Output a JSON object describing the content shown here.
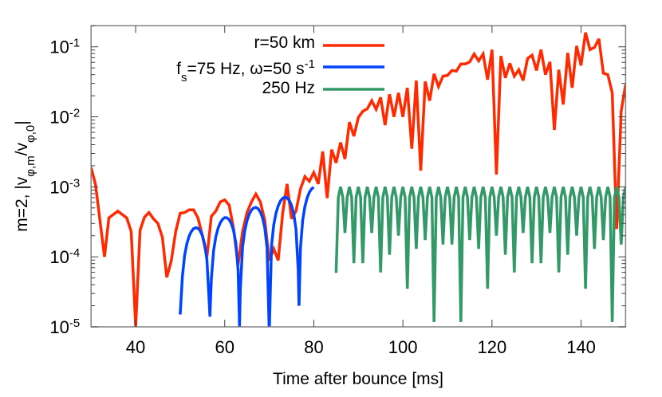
{
  "chart_data": {
    "type": "line",
    "title": "",
    "xlabel": "Time after bounce [ms]",
    "ylabel_parts": [
      [
        "m=2, |v",
        ""
      ],
      [
        "φ,m",
        "sub"
      ],
      [
        "/v",
        ""
      ],
      [
        "φ,0",
        "sub"
      ],
      [
        "|",
        ""
      ]
    ],
    "ylabel": "m=2, |vφ,m/vφ,0|",
    "xlim": [
      30,
      150
    ],
    "ylim": [
      1e-05,
      0.2
    ],
    "yscale": "log",
    "grid": false,
    "legend_position": "top-right",
    "xticks": [
      40,
      60,
      80,
      100,
      120,
      140
    ],
    "yticks": [
      {
        "base": "10",
        "exp": "-5",
        "value": 1e-05
      },
      {
        "base": "10",
        "exp": "-4",
        "value": 0.0001
      },
      {
        "base": "10",
        "exp": "-3",
        "value": 0.001
      },
      {
        "base": "10",
        "exp": "-2",
        "value": 0.01
      },
      {
        "base": "10",
        "exp": "-1",
        "value": 0.1
      }
    ],
    "series": [
      {
        "name": "r=50 km",
        "legend_parts": [
          [
            "r=50 km",
            ""
          ]
        ],
        "color": "#ff2a00",
        "points": [
          [
            30,
            0.0019
          ],
          [
            31,
            0.00107
          ],
          [
            33,
            0.0001
          ],
          [
            34,
            0.00036
          ],
          [
            36,
            0.00045
          ],
          [
            38,
            0.00036
          ],
          [
            39,
            0.00023
          ],
          [
            40,
            1e-05
          ],
          [
            41,
            0.00024
          ],
          [
            42,
            0.00037
          ],
          [
            43,
            0.00043
          ],
          [
            44,
            0.00035
          ],
          [
            45,
            0.0003
          ],
          [
            46,
            0.00019
          ],
          [
            47,
            5.1e-05
          ],
          [
            48,
            8.7e-05
          ],
          [
            49,
            0.00023
          ],
          [
            50,
            0.00042
          ],
          [
            51,
            0.00043
          ],
          [
            52,
            0.00047
          ],
          [
            53,
            0.00047
          ],
          [
            54,
            0.00036
          ],
          [
            55,
            0.0002
          ],
          [
            56,
            0.0001
          ],
          [
            57,
            0.00038
          ],
          [
            58,
            0.00045
          ],
          [
            59,
            0.00061
          ],
          [
            60,
            0.00065
          ],
          [
            61,
            0.00055
          ],
          [
            62,
            0.00025
          ],
          [
            63,
            7.7e-05
          ],
          [
            64,
            0.00023
          ],
          [
            65,
            0.00043
          ],
          [
            66,
            0.00061
          ],
          [
            67,
            0.00079
          ],
          [
            68,
            0.00061
          ],
          [
            69,
            0.00033
          ],
          [
            70,
            8.9e-05
          ],
          [
            71,
            0.00013
          ],
          [
            72,
            8.9e-05
          ],
          [
            73,
            0.00042
          ],
          [
            74,
            0.0011
          ],
          [
            75,
            0.00035
          ],
          [
            76,
            0.00045
          ],
          [
            77,
            0.00093
          ],
          [
            78,
            0.0014
          ],
          [
            79,
            0.0012
          ],
          [
            80,
            0.0016
          ],
          [
            81,
            0.0011
          ],
          [
            82,
            0.0032
          ],
          [
            83,
            0.00069
          ],
          [
            84,
            0.0034
          ],
          [
            85,
            0.0022
          ],
          [
            86,
            0.0043
          ],
          [
            87,
            0.0025
          ],
          [
            88,
            0.0084
          ],
          [
            89,
            0.0053
          ],
          [
            90,
            0.0098
          ],
          [
            91,
            0.012
          ],
          [
            92,
            0.013
          ],
          [
            93,
            0.017
          ],
          [
            94,
            0.0128
          ],
          [
            95,
            0.019
          ],
          [
            96,
            0.0076
          ],
          [
            97,
            0.021
          ],
          [
            98,
            0.01
          ],
          [
            99,
            0.022
          ],
          [
            100,
            0.01
          ],
          [
            101,
            0.026
          ],
          [
            102,
            0.0035
          ],
          [
            103,
            0.033
          ],
          [
            104,
            0.0017
          ],
          [
            105,
            0.032
          ],
          [
            106,
            0.017
          ],
          [
            107,
            0.041
          ],
          [
            108,
            0.027
          ],
          [
            109,
            0.038
          ],
          [
            110,
            0.039
          ],
          [
            111,
            0.046
          ],
          [
            112,
            0.045
          ],
          [
            113,
            0.057
          ],
          [
            114,
            0.057
          ],
          [
            115,
            0.061
          ],
          [
            116,
            0.079
          ],
          [
            117,
            0.063
          ],
          [
            118,
            0.079
          ],
          [
            119,
            0.034
          ],
          [
            120,
            0.091
          ],
          [
            121,
            0.0015
          ],
          [
            122,
            0.074
          ],
          [
            123,
            0.036
          ],
          [
            124,
            0.058
          ],
          [
            125,
            0.038
          ],
          [
            126,
            0.047
          ],
          [
            127,
            0.033
          ],
          [
            128,
            0.068
          ],
          [
            129,
            0.076
          ],
          [
            130,
            0.046
          ],
          [
            131,
            0.091
          ],
          [
            132,
            0.04
          ],
          [
            133,
            0.061
          ],
          [
            134,
            0.0065
          ],
          [
            135,
            0.047
          ],
          [
            136,
            0.015
          ],
          [
            137,
            0.082
          ],
          [
            138,
            0.026
          ],
          [
            139,
            0.103
          ],
          [
            140,
            0.054
          ],
          [
            141,
            0.16
          ],
          [
            142,
            0.091
          ],
          [
            143,
            0.098
          ],
          [
            144,
            0.13
          ],
          [
            145,
            0.042
          ],
          [
            146,
            0.04
          ],
          [
            147,
            0.022
          ],
          [
            148,
            0.00025
          ],
          [
            149,
            0.012
          ],
          [
            150,
            0.029
          ]
        ]
      },
      {
        "name": "fs=75 Hz, ω=50 s-1",
        "legend_parts": [
          [
            "f",
            ""
          ],
          [
            "s",
            "sub"
          ],
          [
            "=75 Hz, ω=50 s",
            ""
          ],
          [
            "-1",
            "sup"
          ]
        ],
        "color": "#0044ff",
        "points": [
          [
            50,
            1.5e-05
          ],
          [
            50.5,
            5.26e-05
          ],
          [
            51,
            0.000105
          ],
          [
            51.5,
            0.000154
          ],
          [
            52,
            0.000197
          ],
          [
            52.5,
            0.00023
          ],
          [
            53,
            0.000253
          ],
          [
            53.5,
            0.000261
          ],
          [
            54,
            0.000256
          ],
          [
            54.5,
            0.000235
          ],
          [
            55,
            0.0002
          ],
          [
            55.5,
            0.000151
          ],
          [
            56,
            9.18e-05
          ],
          [
            56.5,
            2.38e-05
          ],
          [
            56.67,
            1.4e-05
          ],
          [
            57,
            4.87e-05
          ],
          [
            57.5,
            0.000123
          ],
          [
            58,
            0.000193
          ],
          [
            58.5,
            0.000256
          ],
          [
            59,
            0.000307
          ],
          [
            59.5,
            0.000344
          ],
          [
            60,
            0.000363
          ],
          [
            60.5,
            0.000361
          ],
          [
            61,
            0.00034
          ],
          [
            61.5,
            0.000297
          ],
          [
            62,
            0.000236
          ],
          [
            62.5,
            0.000157
          ],
          [
            63,
            6.57e-05
          ],
          [
            63.33,
            1e-05
          ],
          [
            63.5,
            3.37e-05
          ],
          [
            64,
            0.000137
          ],
          [
            64.5,
            0.000237
          ],
          [
            65,
            0.000329
          ],
          [
            65.5,
            0.000407
          ],
          [
            66,
            0.000466
          ],
          [
            66.5,
            0.0005
          ],
          [
            67,
            0.000508
          ],
          [
            67.5,
            0.000488
          ],
          [
            68,
            0.000438
          ],
          [
            68.5,
            0.00036
          ],
          [
            69,
            0.000258
          ],
          [
            69.5,
            0.000136
          ],
          [
            70,
            8e-06
          ],
          [
            70.5,
            0.000143
          ],
          [
            71,
            0.000285
          ],
          [
            71.5,
            0.000418
          ],
          [
            72,
            0.000535
          ],
          [
            72.5,
            0.000626
          ],
          [
            73,
            0.000686
          ],
          [
            73.5,
            0.00071
          ],
          [
            74,
            0.000695
          ],
          [
            74.5,
            0.000639
          ],
          [
            75,
            0.000543
          ],
          [
            75.5,
            0.000411
          ],
          [
            76,
            0.000249
          ],
          [
            76.5,
            6.46e-05
          ],
          [
            76.67,
            2e-05
          ],
          [
            77,
            0.000132
          ],
          [
            77.5,
            0.000333
          ],
          [
            78,
            0.000525
          ],
          [
            78.5,
            0.000695
          ],
          [
            79,
            0.000836
          ],
          [
            79.5,
            0.000935
          ],
          [
            80,
            0.000986
          ]
        ]
      },
      {
        "name": "250 Hz",
        "legend_parts": [
          [
            "250 Hz",
            ""
          ]
        ],
        "color": "#339966",
        "x": [
          85,
          85.5,
          86,
          86.5,
          87,
          87.5,
          88,
          88.5,
          89,
          89.5,
          90,
          90.5,
          91,
          91.5,
          92,
          92.5,
          93,
          93.5,
          94,
          94.5,
          95,
          95.5,
          96,
          96.5,
          97,
          97.5,
          98,
          98.5,
          99,
          99.5,
          100,
          100.5,
          101,
          101.5,
          102,
          102.5,
          103,
          103.5,
          104,
          104.5,
          105,
          105.5,
          106,
          106.5,
          107,
          107.5,
          108,
          108.5,
          109,
          109.5,
          110,
          110.5,
          111,
          111.5,
          112,
          112.5,
          113,
          113.5,
          114,
          114.5,
          115,
          115.5,
          116,
          116.5,
          117,
          117.5,
          118,
          118.5,
          119,
          119.5,
          120,
          120.5,
          121,
          121.5,
          122,
          122.5,
          123,
          123.5,
          124,
          124.5,
          125,
          125.5,
          126,
          126.5,
          127,
          127.5,
          128,
          128.5,
          129,
          129.5,
          130,
          130.5,
          131,
          131.5,
          132,
          132.5,
          133,
          133.5,
          134,
          134.5,
          135,
          135.5,
          136,
          136.5,
          137,
          137.5,
          138,
          138.5,
          139,
          139.5,
          140,
          140.5,
          141,
          141.5,
          142,
          142.5,
          143,
          143.5,
          144,
          144.5,
          145,
          145.5,
          146,
          146.5,
          147,
          147.5,
          148,
          148.5,
          149,
          149.5,
          150
        ],
        "y": [
          5.9e-05,
          0.00071,
          0.001,
          0.00071,
          0.00022,
          0.00071,
          0.001,
          0.00071,
          8.1e-05,
          0.00071,
          0.001,
          0.00071,
          8.1e-05,
          0.00071,
          0.001,
          0.00071,
          0.00022,
          0.00071,
          0.001,
          0.00071,
          6e-05,
          0.00071,
          0.001,
          0.00071,
          0.000107,
          0.00071,
          0.001,
          0.00071,
          0.0002,
          0.00071,
          0.001,
          0.00071,
          3.5e-05,
          0.00071,
          0.001,
          0.00071,
          0.00013,
          0.00071,
          0.001,
          0.00071,
          0.000174,
          0.00071,
          0.001,
          0.00071,
          1.17e-05,
          0.00071,
          0.001,
          0.00071,
          0.00015,
          0.00071,
          0.001,
          0.00071,
          0.00015,
          0.00071,
          0.001,
          0.00071,
          1.17e-05,
          0.00071,
          0.001,
          0.00071,
          0.000174,
          0.00071,
          0.001,
          0.00071,
          0.00013,
          0.00071,
          0.001,
          0.00071,
          3.5e-05,
          0.00071,
          0.001,
          0.00071,
          0.0002,
          0.00071,
          0.001,
          0.00071,
          0.000107,
          0.00071,
          0.001,
          0.00071,
          6e-05,
          0.00071,
          0.001,
          0.00071,
          0.00022,
          0.00071,
          0.001,
          0.00071,
          8.1e-05,
          0.00071,
          0.001,
          0.00071,
          8.1e-05,
          0.00071,
          0.001,
          0.00071,
          0.00022,
          0.00071,
          0.001,
          0.00071,
          6e-05,
          0.00071,
          0.001,
          0.00071,
          0.000107,
          0.00071,
          0.001,
          0.00071,
          0.0002,
          0.00071,
          0.001,
          0.00071,
          3.5e-05,
          0.00071,
          0.001,
          0.00071,
          0.00013,
          0.00071,
          0.001,
          0.00071,
          0.000174,
          0.00071,
          0.001,
          0.00071,
          1.17e-05,
          0.00071,
          0.001,
          0.00071,
          0.00015,
          0.00071,
          0.001
        ]
      }
    ]
  }
}
